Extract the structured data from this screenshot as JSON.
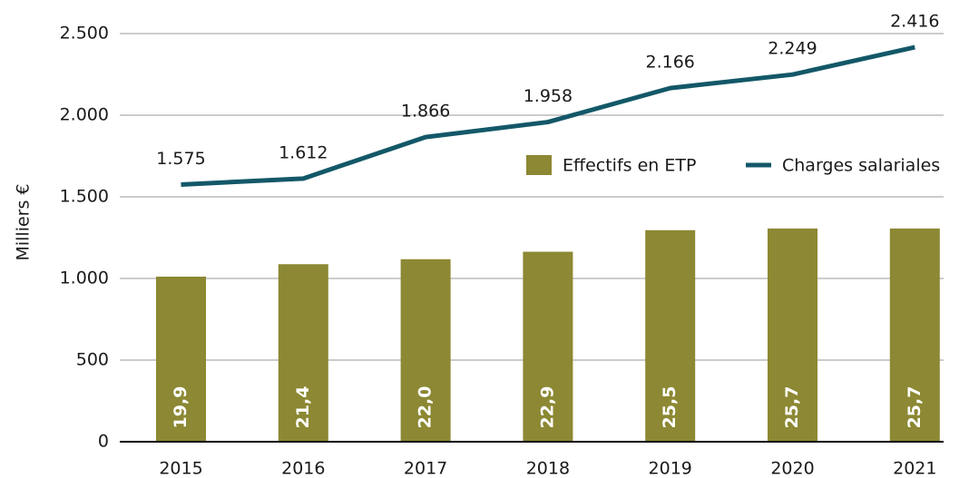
{
  "chart_data": {
    "type": "bar_line",
    "y_label": "Milliers €",
    "categories": [
      "2015",
      "2016",
      "2017",
      "2018",
      "2019",
      "2020",
      "2021"
    ],
    "series": [
      {
        "name": "Effectifs en ETP",
        "type": "bar",
        "axis": "y2",
        "color": "#8c8833",
        "values": [
          19.9,
          21.4,
          22.0,
          22.9,
          25.5,
          25.7,
          25.7
        ],
        "value_labels": [
          "19,9",
          "21,4",
          "22,0",
          "22,9",
          "25,5",
          "25,7",
          "25,7"
        ]
      },
      {
        "name": "Charges salariales",
        "type": "line",
        "color": "#135868",
        "values": [
          1575,
          1612,
          1866,
          1958,
          2166,
          2249,
          2416
        ],
        "value_labels": [
          "1.575",
          "1.612",
          "1.866",
          "1.958",
          "2.166",
          "2.249",
          "2.416"
        ]
      }
    ],
    "ylim": [
      0,
      2500
    ],
    "yticks": [
      0,
      500,
      {
        "value": 1000,
        "label": "1.000"
      },
      {
        "value": 1500,
        "label": "1.500"
      },
      {
        "value": 2000,
        "label": "2.000"
      },
      {
        "value": 2500,
        "label": "2.500"
      }
    ],
    "y2lim": [
      0,
      49.2
    ],
    "grid": true,
    "legend": "top-right"
  }
}
